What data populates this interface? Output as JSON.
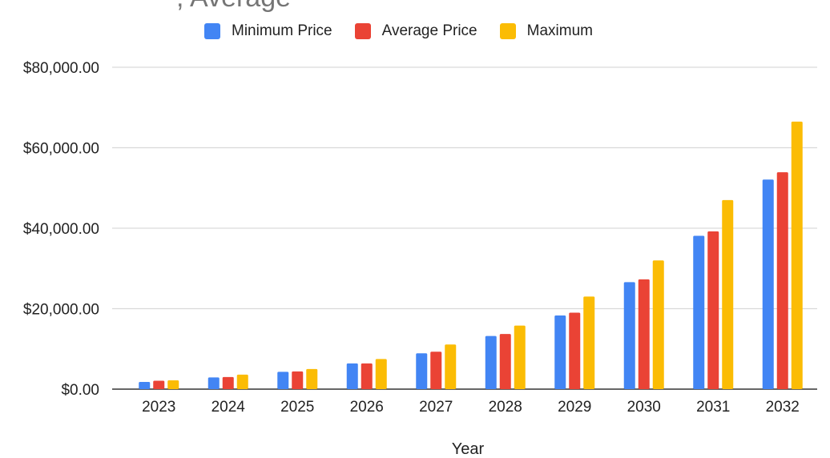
{
  "chart_data": {
    "type": "bar",
    "title_fragment": ", Average",
    "xlabel": "Year",
    "ylabel": "",
    "ylim": [
      0,
      80000
    ],
    "yticks": [
      0,
      20000,
      40000,
      60000,
      80000
    ],
    "ytick_labels": [
      "$0.00",
      "$20,000.00",
      "$40,000.00",
      "$60,000.00",
      "$80,000.00"
    ],
    "grid": true,
    "legend_position": "top",
    "categories": [
      "2023",
      "2024",
      "2025",
      "2026",
      "2027",
      "2028",
      "2029",
      "2030",
      "2031",
      "2032"
    ],
    "series": [
      {
        "name": "Minimum Price",
        "color": "#4285F4",
        "values": [
          1800,
          2900,
          4300,
          6400,
          8900,
          13200,
          18300,
          26600,
          38100,
          52100
        ]
      },
      {
        "name": "Average Price",
        "color": "#EA4335",
        "values": [
          2100,
          3000,
          4400,
          6400,
          9300,
          13700,
          19000,
          27300,
          39200,
          53900
        ]
      },
      {
        "name": "Maximum",
        "color": "#FBBC04",
        "values": [
          2200,
          3600,
          5000,
          7500,
          11100,
          15800,
          23000,
          32000,
          47000,
          66500
        ]
      }
    ]
  }
}
